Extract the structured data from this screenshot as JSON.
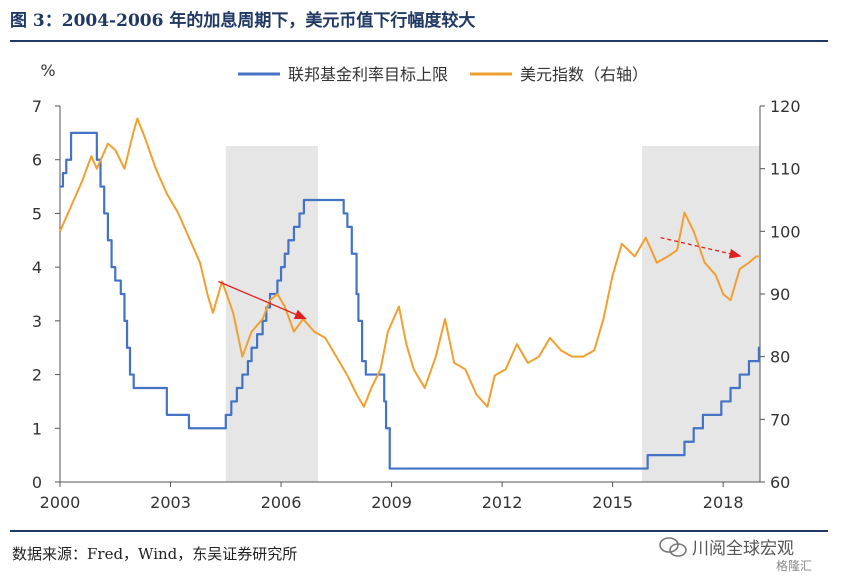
{
  "header": {
    "title": "图 3：2004-2006 年的加息周期下，美元币值下行幅度较大"
  },
  "footer": {
    "source": "数据来源：Fred，Wind，东吴证券研究所"
  },
  "watermark": {
    "name": "川阅全球宏观",
    "logo": "格隆汇"
  },
  "colors": {
    "title": "#1f3864",
    "fed": "#4472c4",
    "dxy": "#f0a030",
    "shade": "#e6e6e6",
    "arrow": "#e02020"
  },
  "chart_data": {
    "type": "line",
    "left_axis_unit": "%",
    "x_ticks": [
      "2000",
      "2003",
      "2006",
      "2009",
      "2012",
      "2015",
      "2018"
    ],
    "x_range": [
      2000,
      2019
    ],
    "y_left": {
      "range": [
        0,
        7
      ],
      "ticks": [
        "0",
        "1",
        "2",
        "3",
        "4",
        "5",
        "6",
        "7"
      ]
    },
    "y_right": {
      "range": [
        60,
        120
      ],
      "ticks": [
        "60",
        "70",
        "80",
        "90",
        "100",
        "110",
        "120"
      ]
    },
    "grid": false,
    "legend_position": "top",
    "shaded_periods": [
      [
        2004.5,
        2007.0
      ],
      [
        2015.8,
        2019.0
      ]
    ],
    "annotation_arrows": [
      {
        "from": [
          2004.3,
          92.0
        ],
        "to": [
          2006.7,
          86.0
        ]
      },
      {
        "from": [
          2016.3,
          99.0
        ],
        "to": [
          2018.5,
          96.0
        ]
      }
    ],
    "series": [
      {
        "name": "联邦基金利率目标上限",
        "axis": "left",
        "color": "#4472c4",
        "step": true,
        "points": [
          [
            2000.0,
            5.5
          ],
          [
            2000.08,
            5.75
          ],
          [
            2000.17,
            6.0
          ],
          [
            2000.3,
            6.5
          ],
          [
            2001.0,
            6.0
          ],
          [
            2001.1,
            5.5
          ],
          [
            2001.2,
            5.0
          ],
          [
            2001.3,
            4.5
          ],
          [
            2001.4,
            4.0
          ],
          [
            2001.5,
            3.75
          ],
          [
            2001.65,
            3.5
          ],
          [
            2001.75,
            3.0
          ],
          [
            2001.82,
            2.5
          ],
          [
            2001.9,
            2.0
          ],
          [
            2002.0,
            1.75
          ],
          [
            2002.9,
            1.25
          ],
          [
            2003.5,
            1.0
          ],
          [
            2004.5,
            1.25
          ],
          [
            2004.65,
            1.5
          ],
          [
            2004.8,
            1.75
          ],
          [
            2004.95,
            2.0
          ],
          [
            2005.1,
            2.25
          ],
          [
            2005.2,
            2.5
          ],
          [
            2005.35,
            2.75
          ],
          [
            2005.5,
            3.0
          ],
          [
            2005.6,
            3.25
          ],
          [
            2005.7,
            3.5
          ],
          [
            2005.9,
            3.75
          ],
          [
            2006.0,
            4.0
          ],
          [
            2006.1,
            4.25
          ],
          [
            2006.2,
            4.5
          ],
          [
            2006.35,
            4.75
          ],
          [
            2006.5,
            5.0
          ],
          [
            2006.62,
            5.25
          ],
          [
            2007.7,
            5.0
          ],
          [
            2007.8,
            4.75
          ],
          [
            2007.92,
            4.25
          ],
          [
            2008.05,
            3.5
          ],
          [
            2008.1,
            3.0
          ],
          [
            2008.2,
            2.25
          ],
          [
            2008.3,
            2.0
          ],
          [
            2008.8,
            1.5
          ],
          [
            2008.85,
            1.0
          ],
          [
            2008.95,
            0.25
          ],
          [
            2015.95,
            0.5
          ],
          [
            2016.95,
            0.75
          ],
          [
            2017.2,
            1.0
          ],
          [
            2017.45,
            1.25
          ],
          [
            2017.95,
            1.5
          ],
          [
            2018.2,
            1.75
          ],
          [
            2018.45,
            2.0
          ],
          [
            2018.7,
            2.25
          ],
          [
            2018.97,
            2.5
          ],
          [
            2019.0,
            2.5
          ]
        ]
      },
      {
        "name": "美元指数（右轴）",
        "axis": "right",
        "color": "#f0a030",
        "step": false,
        "points": [
          [
            2000.0,
            100
          ],
          [
            2000.3,
            104
          ],
          [
            2000.6,
            108
          ],
          [
            2000.85,
            112
          ],
          [
            2001.0,
            110
          ],
          [
            2001.3,
            114
          ],
          [
            2001.5,
            113
          ],
          [
            2001.75,
            110
          ],
          [
            2002.0,
            116
          ],
          [
            2002.1,
            118
          ],
          [
            2002.3,
            115
          ],
          [
            2002.6,
            110
          ],
          [
            2002.9,
            106
          ],
          [
            2003.2,
            103
          ],
          [
            2003.5,
            99
          ],
          [
            2003.8,
            95
          ],
          [
            2004.0,
            90
          ],
          [
            2004.15,
            87
          ],
          [
            2004.4,
            92
          ],
          [
            2004.7,
            87
          ],
          [
            2004.95,
            80
          ],
          [
            2005.2,
            84
          ],
          [
            2005.5,
            86
          ],
          [
            2005.7,
            89
          ],
          [
            2005.9,
            90
          ],
          [
            2006.1,
            88
          ],
          [
            2006.35,
            84
          ],
          [
            2006.6,
            86
          ],
          [
            2006.9,
            84
          ],
          [
            2007.2,
            83
          ],
          [
            2007.5,
            80
          ],
          [
            2007.8,
            77
          ],
          [
            2008.05,
            74
          ],
          [
            2008.25,
            72
          ],
          [
            2008.45,
            75
          ],
          [
            2008.7,
            78
          ],
          [
            2008.9,
            84
          ],
          [
            2009.2,
            88
          ],
          [
            2009.4,
            82
          ],
          [
            2009.6,
            78
          ],
          [
            2009.9,
            75
          ],
          [
            2010.2,
            80
          ],
          [
            2010.45,
            86
          ],
          [
            2010.7,
            79
          ],
          [
            2011.0,
            78
          ],
          [
            2011.3,
            74
          ],
          [
            2011.6,
            72
          ],
          [
            2011.8,
            77
          ],
          [
            2012.1,
            78
          ],
          [
            2012.4,
            82
          ],
          [
            2012.7,
            79
          ],
          [
            2013.0,
            80
          ],
          [
            2013.3,
            83
          ],
          [
            2013.6,
            81
          ],
          [
            2013.9,
            80
          ],
          [
            2014.2,
            80
          ],
          [
            2014.5,
            81
          ],
          [
            2014.75,
            86
          ],
          [
            2015.0,
            93
          ],
          [
            2015.25,
            98
          ],
          [
            2015.6,
            96
          ],
          [
            2015.9,
            99
          ],
          [
            2016.2,
            95
          ],
          [
            2016.5,
            96
          ],
          [
            2016.75,
            97
          ],
          [
            2016.95,
            103
          ],
          [
            2017.2,
            100
          ],
          [
            2017.5,
            95
          ],
          [
            2017.8,
            93
          ],
          [
            2018.0,
            90
          ],
          [
            2018.2,
            89
          ],
          [
            2018.45,
            94
          ],
          [
            2018.7,
            95
          ],
          [
            2018.9,
            96
          ],
          [
            2019.0,
            96
          ]
        ]
      }
    ]
  }
}
